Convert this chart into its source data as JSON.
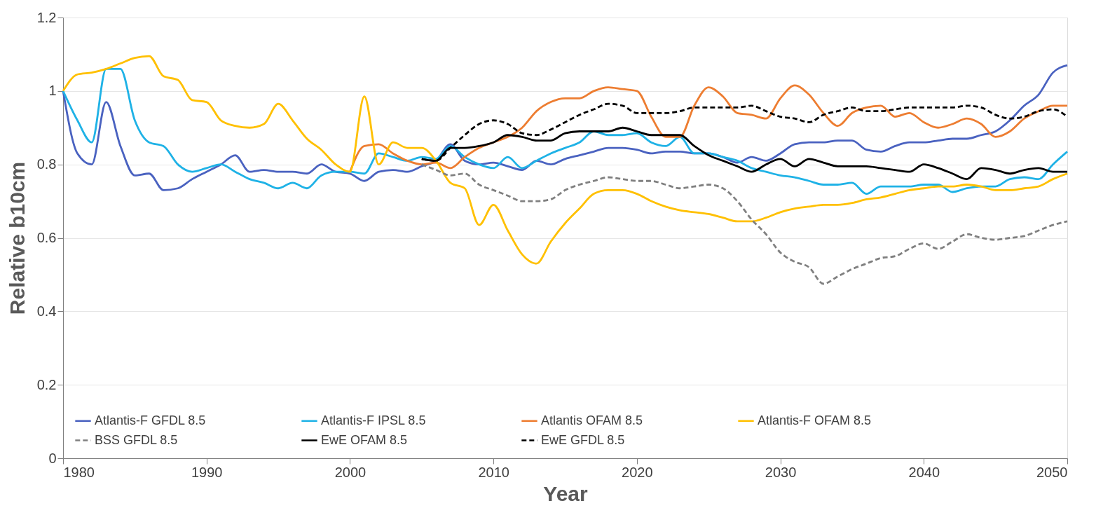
{
  "chart_data": {
    "type": "line",
    "xlabel": "Year",
    "ylabel": "Relative b10cm",
    "x": [
      1980,
      1981,
      1982,
      1983,
      1984,
      1985,
      1986,
      1987,
      1988,
      1989,
      1990,
      1991,
      1992,
      1993,
      1994,
      1995,
      1996,
      1997,
      1998,
      1999,
      2000,
      2001,
      2002,
      2003,
      2004,
      2005,
      2006,
      2007,
      2008,
      2009,
      2010,
      2011,
      2012,
      2013,
      2014,
      2015,
      2016,
      2017,
      2018,
      2019,
      2020,
      2021,
      2022,
      2023,
      2024,
      2025,
      2026,
      2027,
      2028,
      2029,
      2030,
      2031,
      2032,
      2033,
      2034,
      2035,
      2036,
      2037,
      2038,
      2039,
      2040,
      2041,
      2042,
      2043,
      2044,
      2045,
      2046,
      2047,
      2048,
      2049,
      2050
    ],
    "xlim": [
      1980,
      2050
    ],
    "xticks": [
      1980,
      1990,
      2000,
      2010,
      2020,
      2030,
      2040,
      2050
    ],
    "ylim": [
      0,
      1.2
    ],
    "yticks": [
      0,
      0.2,
      0.4,
      0.6,
      0.8,
      1,
      1.2
    ],
    "grid": "y",
    "legend": "bottom",
    "series": [
      {
        "name": "Atlantis-F GFDL 8.5",
        "color": "#4a62c0",
        "line_style": "solid",
        "values": [
          1.0,
          0.83,
          0.8,
          0.97,
          0.85,
          0.77,
          0.775,
          0.73,
          0.735,
          0.76,
          0.78,
          0.8,
          0.825,
          0.78,
          0.785,
          0.78,
          0.78,
          0.775,
          0.8,
          0.78,
          0.775,
          0.755,
          0.78,
          0.785,
          0.78,
          0.795,
          0.81,
          0.855,
          0.81,
          0.8,
          0.805,
          0.795,
          0.785,
          0.81,
          0.8,
          0.815,
          0.825,
          0.835,
          0.845,
          0.845,
          0.84,
          0.83,
          0.835,
          0.835,
          0.83,
          0.83,
          0.82,
          0.805,
          0.82,
          0.81,
          0.83,
          0.855,
          0.86,
          0.86,
          0.865,
          0.865,
          0.84,
          0.835,
          0.85,
          0.86,
          0.86,
          0.865,
          0.87,
          0.87,
          0.88,
          0.89,
          0.92,
          0.96,
          0.99,
          1.05,
          1.07
        ]
      },
      {
        "name": "Atlantis-F IPSL 8.5",
        "color": "#1fb2e6",
        "line_style": "solid",
        "values": [
          1.0,
          0.92,
          0.86,
          1.06,
          1.06,
          0.92,
          0.86,
          0.85,
          0.8,
          0.78,
          0.79,
          0.8,
          0.78,
          0.76,
          0.75,
          0.735,
          0.75,
          0.735,
          0.77,
          0.78,
          0.78,
          0.775,
          0.83,
          0.82,
          0.81,
          0.82,
          0.815,
          0.85,
          0.82,
          0.8,
          0.79,
          0.82,
          0.79,
          0.81,
          0.83,
          0.845,
          0.86,
          0.89,
          0.88,
          0.88,
          0.885,
          0.86,
          0.85,
          0.875,
          0.83,
          0.83,
          0.82,
          0.81,
          0.79,
          0.78,
          0.77,
          0.765,
          0.755,
          0.745,
          0.745,
          0.75,
          0.72,
          0.74,
          0.74,
          0.74,
          0.745,
          0.745,
          0.725,
          0.735,
          0.74,
          0.74,
          0.76,
          0.765,
          0.76,
          0.8,
          0.835
        ]
      },
      {
        "name": "Atlantis OFAM 8.5",
        "color": "#ed7d31",
        "line_style": "solid",
        "values": [
          null,
          null,
          null,
          null,
          null,
          null,
          null,
          null,
          null,
          null,
          null,
          null,
          null,
          null,
          null,
          null,
          null,
          null,
          null,
          null,
          0.78,
          0.85,
          0.855,
          0.83,
          0.81,
          0.8,
          0.805,
          0.79,
          0.82,
          0.845,
          0.86,
          0.875,
          0.9,
          0.945,
          0.97,
          0.98,
          0.98,
          1.0,
          1.01,
          1.005,
          1.0,
          0.93,
          0.875,
          0.875,
          0.96,
          1.01,
          0.985,
          0.94,
          0.935,
          0.925,
          0.98,
          1.015,
          0.99,
          0.94,
          0.905,
          0.94,
          0.955,
          0.96,
          0.93,
          0.94,
          0.915,
          0.9,
          0.91,
          0.925,
          0.91,
          0.875,
          0.89,
          0.925,
          0.945,
          0.96,
          0.96
        ]
      },
      {
        "name": "Atlantis-F OFAM 8.5",
        "color": "#ffc000",
        "line_style": "solid",
        "values": [
          1.0,
          1.045,
          1.05,
          1.06,
          1.075,
          1.09,
          1.095,
          1.04,
          1.03,
          0.975,
          0.97,
          0.92,
          0.905,
          0.9,
          0.91,
          0.965,
          0.92,
          0.87,
          0.84,
          0.8,
          0.78,
          0.985,
          0.8,
          0.86,
          0.845,
          0.845,
          0.81,
          0.75,
          0.735,
          0.635,
          0.69,
          0.62,
          0.555,
          0.53,
          0.59,
          0.64,
          0.68,
          0.72,
          0.73,
          0.73,
          0.72,
          0.7,
          0.685,
          0.675,
          0.67,
          0.665,
          0.655,
          0.645,
          0.645,
          0.655,
          0.67,
          0.68,
          0.685,
          0.69,
          0.69,
          0.695,
          0.705,
          0.71,
          0.72,
          0.73,
          0.735,
          0.74,
          0.74,
          0.745,
          0.74,
          0.73,
          0.73,
          0.735,
          0.74,
          0.76,
          0.775
        ]
      },
      {
        "name": "BSS GFDL 8.5",
        "color": "#808080",
        "line_style": "dashed",
        "values": [
          null,
          null,
          null,
          null,
          null,
          null,
          null,
          null,
          null,
          null,
          null,
          null,
          null,
          null,
          null,
          null,
          null,
          null,
          null,
          null,
          null,
          null,
          null,
          null,
          null,
          0.8,
          0.785,
          0.77,
          0.775,
          0.745,
          0.73,
          0.715,
          0.7,
          0.7,
          0.705,
          0.73,
          0.745,
          0.755,
          0.765,
          0.76,
          0.755,
          0.755,
          0.745,
          0.735,
          0.74,
          0.745,
          0.735,
          0.7,
          0.65,
          0.61,
          0.56,
          0.535,
          0.52,
          0.475,
          0.495,
          0.515,
          0.53,
          0.545,
          0.55,
          0.57,
          0.585,
          0.57,
          0.59,
          0.61,
          0.6,
          0.595,
          0.6,
          0.605,
          0.62,
          0.635,
          0.645
        ]
      },
      {
        "name": "EwE OFAM 8.5",
        "color": "#000000",
        "line_style": "solid",
        "values": [
          null,
          null,
          null,
          null,
          null,
          null,
          null,
          null,
          null,
          null,
          null,
          null,
          null,
          null,
          null,
          null,
          null,
          null,
          null,
          null,
          null,
          null,
          null,
          null,
          null,
          0.815,
          0.81,
          0.845,
          0.845,
          0.85,
          0.86,
          0.88,
          0.875,
          0.865,
          0.865,
          0.885,
          0.89,
          0.89,
          0.89,
          0.9,
          0.89,
          0.88,
          0.88,
          0.88,
          0.85,
          0.825,
          0.81,
          0.795,
          0.78,
          0.8,
          0.815,
          0.795,
          0.815,
          0.805,
          0.795,
          0.795,
          0.795,
          0.79,
          0.785,
          0.78,
          0.8,
          0.79,
          0.775,
          0.76,
          0.79,
          0.785,
          0.775,
          0.785,
          0.79,
          0.78,
          0.78
        ]
      },
      {
        "name": "EwE GFDL 8.5",
        "color": "#000000",
        "line_style": "dashed",
        "values": [
          null,
          null,
          null,
          null,
          null,
          null,
          null,
          null,
          null,
          null,
          null,
          null,
          null,
          null,
          null,
          null,
          null,
          null,
          null,
          null,
          null,
          null,
          null,
          null,
          null,
          0.815,
          0.81,
          0.845,
          0.88,
          0.91,
          0.92,
          0.91,
          0.885,
          0.88,
          0.895,
          0.915,
          0.935,
          0.95,
          0.965,
          0.96,
          0.94,
          0.94,
          0.94,
          0.945,
          0.955,
          0.955,
          0.955,
          0.955,
          0.96,
          0.945,
          0.93,
          0.925,
          0.915,
          0.935,
          0.945,
          0.955,
          0.945,
          0.945,
          0.95,
          0.955,
          0.955,
          0.955,
          0.955,
          0.96,
          0.955,
          0.935,
          0.925,
          0.93,
          0.945,
          0.95,
          0.93
        ]
      }
    ]
  }
}
